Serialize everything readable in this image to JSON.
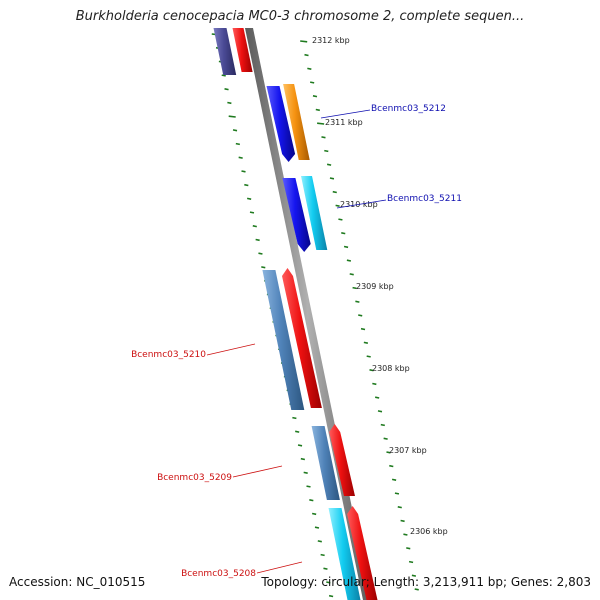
{
  "title": "Burkholderia cenocepacia MC0-3 chromosome 2, complete sequen...",
  "footer": {
    "accession": "Accession: NC_010515",
    "summary": "Topology: circular; Length: 3,213,911 bp; Genes: 2,803"
  },
  "colors": {
    "backbone": "#7d7d7d",
    "tick": "#1f7a1f",
    "forward_label": "#1010b0",
    "reverse_label": "#cc1010",
    "gene_red": "#ee1111",
    "gene_blue": "#1515ee",
    "gene_orange": "#f59210",
    "gene_cyan": "#12ccf0",
    "gene_steel": "#4f82b8",
    "gene_purple": "#4a4a95"
  },
  "scale_labels": [
    "2312 kbp",
    "2311 kbp",
    "2310 kbp",
    "2309 kbp",
    "2308 kbp",
    "2307 kbp",
    "2306 kbp"
  ],
  "gene_labels": [
    {
      "text": "Bcenmc03_5212",
      "strand": "forward"
    },
    {
      "text": "Bcenmc03_5211",
      "strand": "forward"
    },
    {
      "text": "Bcenmc03_5210",
      "strand": "reverse"
    },
    {
      "text": "Bcenmc03_5209",
      "strand": "reverse"
    },
    {
      "text": "Bcenmc03_5208",
      "strand": "reverse"
    }
  ]
}
